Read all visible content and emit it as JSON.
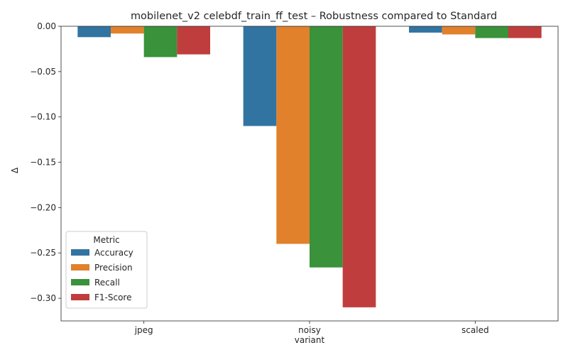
{
  "chart_data": {
    "type": "bar",
    "title": "mobilenet_v2 celebdf_train_ff_test – Robustness compared to Standard",
    "xlabel": "variant",
    "ylabel": "Δ",
    "categories": [
      "jpeg",
      "noisy",
      "scaled"
    ],
    "series": [
      {
        "name": "Accuracy",
        "color": "#3274a1",
        "values": [
          -0.012,
          -0.11,
          -0.007
        ]
      },
      {
        "name": "Precision",
        "color": "#e1812c",
        "values": [
          -0.008,
          -0.24,
          -0.009
        ]
      },
      {
        "name": "Recall",
        "color": "#3a923a",
        "values": [
          -0.034,
          -0.266,
          -0.013
        ]
      },
      {
        "name": "F1-Score",
        "color": "#c03d3e",
        "values": [
          -0.031,
          -0.31,
          -0.013
        ]
      }
    ],
    "ylim": [
      -0.325,
      0.0
    ],
    "yticks": [
      0.0,
      -0.05,
      -0.1,
      -0.15,
      -0.2,
      -0.25,
      -0.3
    ],
    "ytick_labels": [
      "0.00",
      "−0.05",
      "−0.10",
      "−0.15",
      "−0.20",
      "−0.25",
      "−0.30"
    ],
    "legend": {
      "title": "Metric",
      "placement": "lower-left"
    },
    "grid": false
  }
}
